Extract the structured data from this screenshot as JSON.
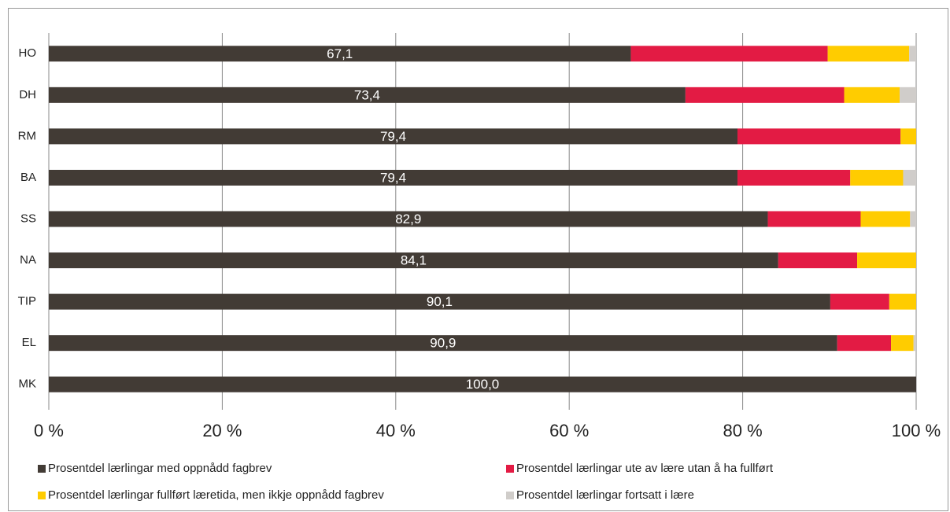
{
  "chart_data": {
    "type": "stacked-bar-horizontal",
    "categories": [
      "HO",
      "DH",
      "RM",
      "BA",
      "SS",
      "NA",
      "TIP",
      "EL",
      "MK"
    ],
    "series": [
      {
        "name": "Prosentdel lærlingar med oppnådd fagbrev",
        "color": "#423b35",
        "values": [
          67.1,
          73.4,
          79.4,
          79.4,
          82.9,
          84.1,
          90.1,
          90.9,
          100.0
        ],
        "value_labels": [
          "67,1",
          "73,4",
          "79,4",
          "79,4",
          "82,9",
          "84,1",
          "90,1",
          "90,9",
          "100,0"
        ]
      },
      {
        "name": "Prosentdel lærlingar ute av lære utan å ha fullført",
        "color": "#e31b44",
        "values": [
          22.7,
          18.3,
          18.8,
          13.0,
          10.7,
          9.1,
          6.8,
          6.2,
          0
        ]
      },
      {
        "name": "Prosentdel lærlingar fullført læretida, men ikkje oppnådd fagbrev",
        "color": "#ffcc00",
        "values": [
          9.4,
          6.4,
          1.8,
          6.1,
          5.7,
          6.8,
          3.1,
          2.6,
          0
        ]
      },
      {
        "name": "Prosentdel lærlingar fortsatt i lære",
        "color": "#d0cdca",
        "values": [
          0.8,
          1.9,
          0,
          1.5,
          0.7,
          0,
          0,
          0.3,
          0
        ]
      }
    ],
    "xlim": [
      0,
      100
    ],
    "xticks": [
      {
        "value": 0,
        "label": "0 %"
      },
      {
        "value": 20,
        "label": "20 %"
      },
      {
        "value": 40,
        "label": "40 %"
      },
      {
        "value": 60,
        "label": "60 %"
      },
      {
        "value": 80,
        "label": "80 %"
      },
      {
        "value": 100,
        "label": "100 %"
      }
    ],
    "grid": true
  }
}
